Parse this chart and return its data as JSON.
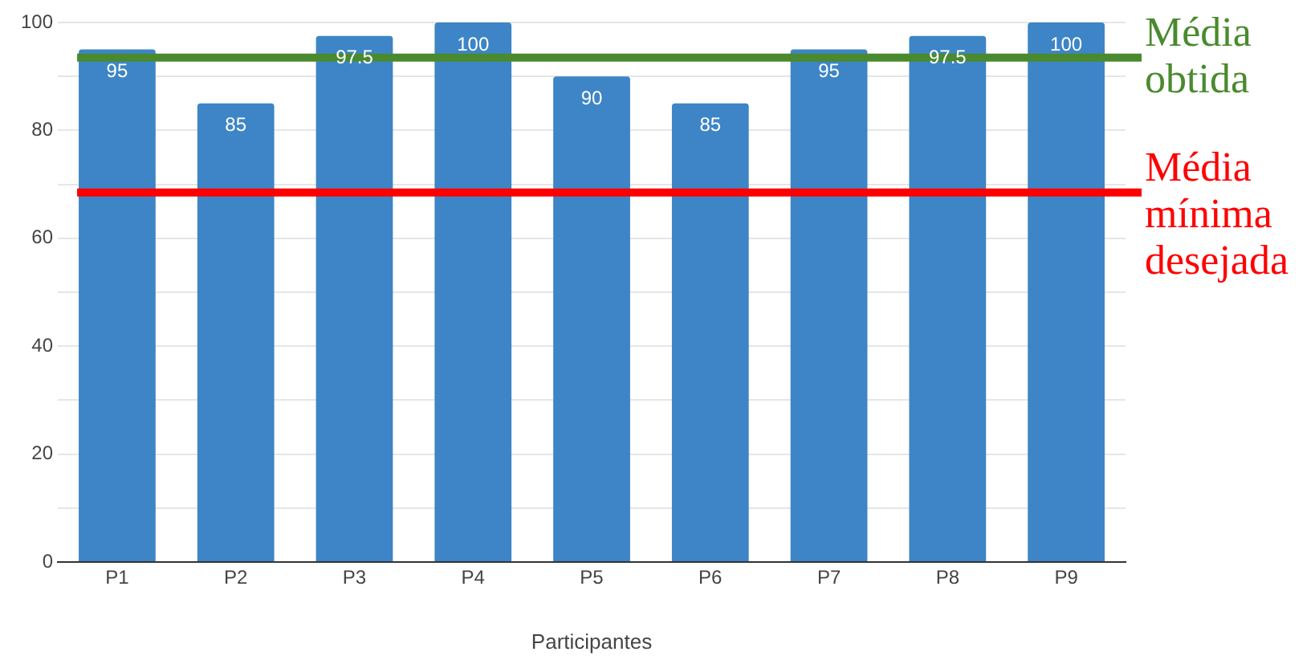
{
  "chart_data": {
    "type": "bar",
    "xlabel": "Participantes",
    "categories": [
      "P1",
      "P2",
      "P3",
      "P4",
      "P5",
      "P6",
      "P7",
      "P8",
      "P9"
    ],
    "values": [
      95,
      85,
      97.5,
      100,
      90,
      85,
      95,
      97.5,
      100
    ],
    "color": "#3d85c6",
    "ylim": [
      0,
      100
    ],
    "yticks": [
      0,
      {
        "value": 10,
        "label": null
      },
      20,
      {
        "value": 30,
        "label": null
      },
      40,
      {
        "value": 50,
        "label": null
      },
      60,
      {
        "value": 70,
        "label": null
      },
      80,
      {
        "value": 90,
        "label": null
      },
      100
    ],
    "grid": "y",
    "legend": false,
    "data_labels": true,
    "ref_lines": [
      {
        "axis": "y",
        "value": 93.5,
        "label": "Média obtida",
        "color": "#4a8a2e"
      },
      {
        "axis": "y",
        "value": 68.5,
        "label": "Média mínima desejada",
        "color": "#ff0000"
      }
    ]
  }
}
